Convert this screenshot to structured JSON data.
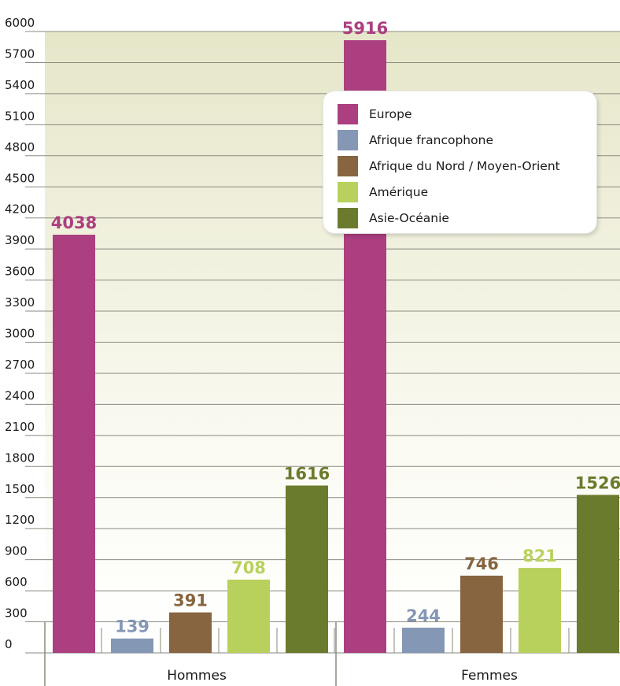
{
  "chart_data": {
    "type": "bar",
    "categories": [
      "Hommes",
      "Femmes"
    ],
    "series": [
      {
        "name": "Europe",
        "color": "#ac3f80",
        "values": [
          4038,
          5916
        ]
      },
      {
        "name": "Afrique francophone",
        "color": "#8497b5",
        "values": [
          139,
          244
        ]
      },
      {
        "name": "Afrique du Nord / Moyen-Orient",
        "color": "#876540",
        "values": [
          391,
          746
        ]
      },
      {
        "name": "Amérique",
        "color": "#b8d15c",
        "values": [
          708,
          821
        ]
      },
      {
        "name": "Asie-Océanie",
        "color": "#6b7b2d",
        "values": [
          1616,
          1526
        ]
      }
    ],
    "y_ticks": [
      0,
      300,
      600,
      900,
      1200,
      1500,
      1800,
      2100,
      2400,
      2700,
      3000,
      3300,
      3600,
      3900,
      4200,
      4500,
      4800,
      5100,
      5400,
      5700,
      6000
    ],
    "ylim": [
      0,
      6000
    ],
    "title": "",
    "xlabel": "",
    "ylabel": "",
    "grid": true,
    "legend_position": "top-right"
  }
}
